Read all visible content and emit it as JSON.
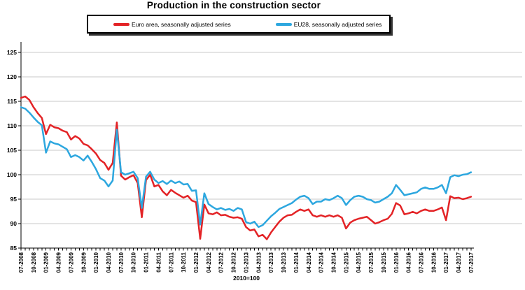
{
  "title": "Production in the construction sector",
  "legend": {
    "entries": [
      {
        "label": "Euro area, seasonally adjusted series",
        "color": "#e32326"
      },
      {
        "label": "EU28, seasonally adjusted series",
        "color": "#2da7df"
      }
    ]
  },
  "chart_data": {
    "type": "line",
    "title": "Production in the construction sector",
    "index_note": "2010=100",
    "x_unit": "month",
    "x_range": [
      "07-2008",
      "07-2017"
    ],
    "months_per_labeled_tick": 3,
    "x_tick_labels": [
      "07-2008",
      "10-2008",
      "01-2009",
      "04-2009",
      "07-2009",
      "10-2009",
      "01-2010",
      "04-2010",
      "07-2010",
      "10-2010",
      "01-2011",
      "04-2011",
      "07-2011",
      "10-2011",
      "01-2012",
      "04-2012",
      "07-2012",
      "10-2012",
      "01-2013",
      "04-2013",
      "07-2013",
      "10-2013",
      "01-2014",
      "04-2014",
      "07-2014",
      "10-2014",
      "01-2015",
      "04-2015",
      "07-2015",
      "10-2015",
      "01-2016",
      "04-2016",
      "07-2016",
      "10-2016",
      "01-2017",
      "04-2017",
      "07-2017"
    ],
    "y_ticks": [
      85,
      90,
      95,
      100,
      105,
      110,
      115,
      120,
      125
    ],
    "ylim": [
      85,
      127
    ],
    "grid": "horizontal",
    "legend_position": "top",
    "axis_color": "#000000",
    "grid_color": "#c9c9c9",
    "series": [
      {
        "name": "Euro area, seasonally adjusted series",
        "color": "#e32326",
        "values": [
          115.7,
          116.0,
          115.3,
          113.8,
          112.6,
          111.6,
          108.3,
          110.2,
          109.7,
          109.5,
          109.0,
          108.7,
          107.2,
          107.9,
          107.4,
          106.3,
          106.0,
          105.2,
          104.3,
          103.0,
          102.4,
          101.0,
          102.4,
          110.7,
          99.8,
          99.0,
          99.5,
          99.9,
          98.3,
          91.3,
          98.9,
          100.0,
          97.6,
          97.9,
          96.6,
          95.8,
          96.9,
          96.3,
          95.8,
          95.3,
          95.7,
          94.7,
          94.4,
          86.9,
          93.9,
          92.1,
          91.9,
          92.3,
          91.7,
          91.8,
          91.4,
          91.2,
          91.3,
          91.0,
          89.3,
          88.6,
          88.8,
          87.4,
          87.7,
          86.8,
          88.2,
          89.3,
          90.4,
          91.2,
          91.7,
          91.8,
          92.4,
          92.9,
          92.6,
          92.9,
          91.7,
          91.4,
          91.7,
          91.4,
          91.7,
          91.4,
          91.7,
          91.2,
          89.0,
          90.2,
          90.7,
          91.0,
          91.2,
          91.4,
          90.7,
          90.0,
          90.3,
          90.7,
          91.0,
          92.0,
          94.2,
          93.7,
          91.9,
          92.1,
          92.4,
          92.1,
          92.6,
          92.9,
          92.6,
          92.6,
          92.9,
          93.3,
          90.7,
          95.6,
          95.2,
          95.3,
          95.0,
          95.2,
          95.5
        ]
      },
      {
        "name": "EU28, seasonally adjusted series",
        "color": "#2da7df",
        "values": [
          113.8,
          113.5,
          112.7,
          111.7,
          110.8,
          110.1,
          104.5,
          106.8,
          106.4,
          106.2,
          105.7,
          105.2,
          103.6,
          104.0,
          103.6,
          102.9,
          103.9,
          102.6,
          101.1,
          99.3,
          98.8,
          97.6,
          98.8,
          109.2,
          100.5,
          100.0,
          100.3,
          100.6,
          99.3,
          93.2,
          99.6,
          100.6,
          99.0,
          98.3,
          98.7,
          98.1,
          98.8,
          98.3,
          98.6,
          98.0,
          98.1,
          96.7,
          96.8,
          89.8,
          96.2,
          94.0,
          93.4,
          92.9,
          93.2,
          92.8,
          93.0,
          92.6,
          93.2,
          92.9,
          90.3,
          90.0,
          90.4,
          89.3,
          89.7,
          90.6,
          91.5,
          92.2,
          93.0,
          93.4,
          93.8,
          94.2,
          94.9,
          95.5,
          95.7,
          95.2,
          94.0,
          94.5,
          94.5,
          95.0,
          94.8,
          95.2,
          95.7,
          95.2,
          93.8,
          94.8,
          95.5,
          95.7,
          95.5,
          95.0,
          94.8,
          94.3,
          94.5,
          95.0,
          95.5,
          96.2,
          97.9,
          96.9,
          95.8,
          96.0,
          96.2,
          96.4,
          97.1,
          97.4,
          97.1,
          97.1,
          97.4,
          97.9,
          96.2,
          99.5,
          99.9,
          99.7,
          100.0,
          100.1,
          100.5
        ]
      }
    ]
  }
}
